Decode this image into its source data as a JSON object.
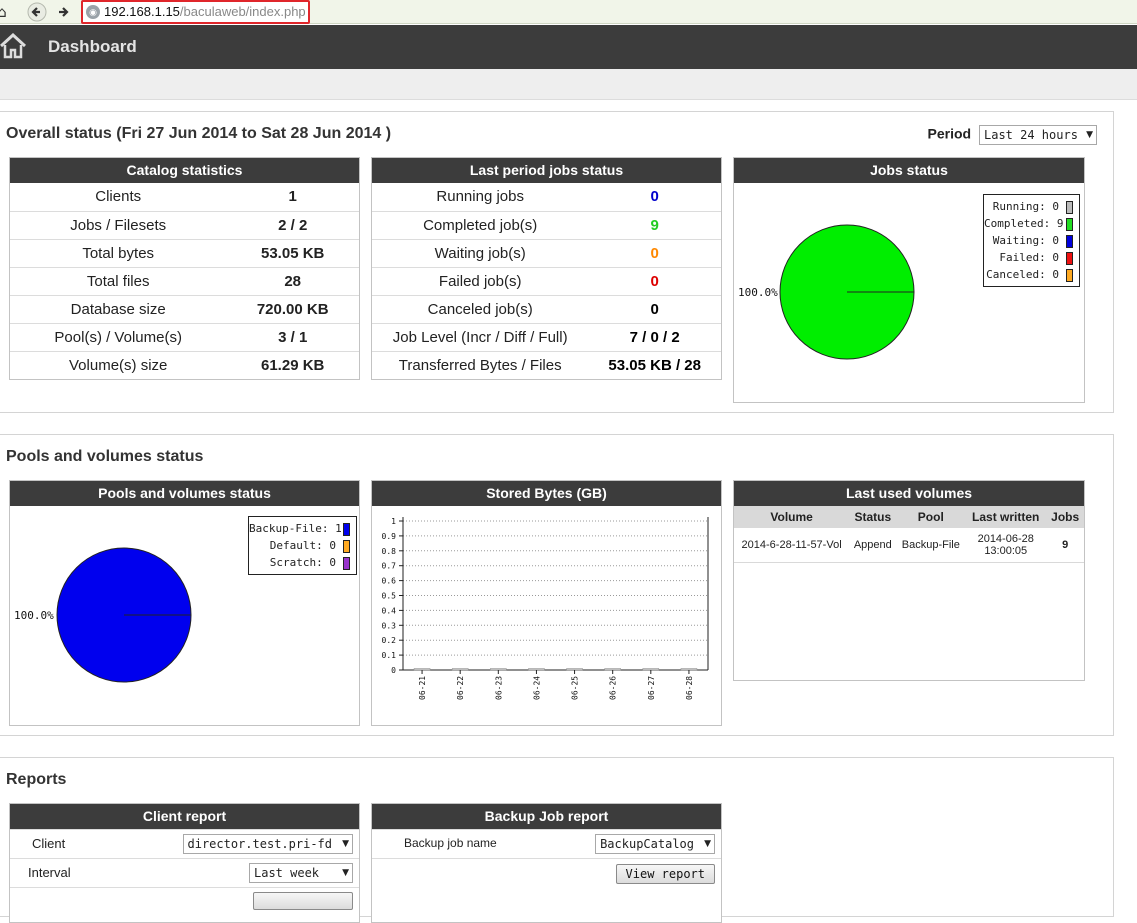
{
  "browser": {
    "url_host": "192.168.1.15",
    "url_path": "/baculaweb/index.php"
  },
  "header": {
    "title": "Dashboard"
  },
  "overall": {
    "title": "Overall status (Fri 27 Jun 2014 to Sat 28 Jun 2014 )",
    "period_label": "Period",
    "period_value": "Last 24 hours"
  },
  "catalog": {
    "title": "Catalog statistics",
    "rows": [
      {
        "label": "Clients",
        "value": "1"
      },
      {
        "label": "Jobs / Filesets",
        "value": "2 / 2"
      },
      {
        "label": "Total bytes",
        "value": "53.05 KB"
      },
      {
        "label": "Total files",
        "value": "28"
      },
      {
        "label": "Database size",
        "value": "720.00 KB"
      },
      {
        "label": "Pool(s) / Volume(s)",
        "value": "3 / 1"
      },
      {
        "label": "Volume(s) size",
        "value": "61.29 KB"
      }
    ]
  },
  "lastperiod": {
    "title": "Last period jobs status",
    "rows": [
      {
        "label": "Running jobs",
        "value": "0",
        "color": "#0000cc"
      },
      {
        "label": "Completed job(s)",
        "value": "9",
        "color": "#22cc22"
      },
      {
        "label": "Waiting job(s)",
        "value": "0",
        "color": "#ff8800"
      },
      {
        "label": "Failed job(s)",
        "value": "0",
        "color": "#dd0000"
      },
      {
        "label": "Canceled job(s)",
        "value": "0",
        "color": "#000000"
      },
      {
        "label": "Job Level (Incr / Diff / Full)",
        "value": "7 / 0 / 2",
        "color": "#000000"
      },
      {
        "label": "Transferred Bytes / Files",
        "value": "53.05 KB / 28",
        "color": "#000000"
      }
    ]
  },
  "jobs_status": {
    "title": "Jobs status",
    "pie_label": "100.0%",
    "legend": [
      {
        "text": "Running: 0",
        "color": "#bbbbbb"
      },
      {
        "text": "Completed: 9",
        "color": "#22dd22"
      },
      {
        "text": "Waiting: 0",
        "color": "#0000dd"
      },
      {
        "text": "Failed: 0",
        "color": "#ee1111"
      },
      {
        "text": "Canceled: 0",
        "color": "#ffaa22"
      }
    ]
  },
  "pools": {
    "section_title": "Pools and volumes status",
    "title": "Pools and volumes status",
    "pie_label": "100.0%",
    "legend": [
      {
        "text": "Backup-File: 1",
        "color": "#0000ee"
      },
      {
        "text": "Default: 0",
        "color": "#ffaa22"
      },
      {
        "text": "Scratch: 0",
        "color": "#9933cc"
      }
    ]
  },
  "stored": {
    "title": "Stored Bytes (GB)"
  },
  "chart_data": {
    "type": "bar",
    "title": "Stored Bytes (GB)",
    "categories": [
      "06-21",
      "06-22",
      "06-23",
      "06-24",
      "06-25",
      "06-26",
      "06-27",
      "06-28"
    ],
    "values": [
      0,
      0,
      0,
      0,
      0,
      0,
      0,
      0
    ],
    "yticks": [
      "0",
      "0.1",
      "0.2",
      "0.3",
      "0.4",
      "0.5",
      "0.6",
      "0.7",
      "0.8",
      "0.9",
      "1"
    ],
    "ylim": [
      0,
      1
    ],
    "grid": true
  },
  "lastvols": {
    "title": "Last used volumes",
    "columns": [
      "Volume",
      "Status",
      "Pool",
      "Last written",
      "Jobs"
    ],
    "rows": [
      {
        "volume": "2014-6-28-11-57-Vol",
        "status": "Append",
        "pool": "Backup-File",
        "written_date": "2014-06-28",
        "written_time": "13:00:05",
        "jobs": "9"
      }
    ]
  },
  "reports": {
    "section_title": "Reports",
    "client": {
      "title": "Client report",
      "client_label": "Client",
      "client_value": "director.test.pri-fd",
      "interval_label": "Interval",
      "interval_value": "Last week"
    },
    "backup": {
      "title": "Backup Job report",
      "job_label": "Backup job name",
      "job_value": "BackupCatalog",
      "view_button": "View report"
    }
  },
  "colors": {
    "header_bg": "#3c3c3c",
    "completed_green": "#00ee00",
    "pool_blue": "#0000ee"
  }
}
